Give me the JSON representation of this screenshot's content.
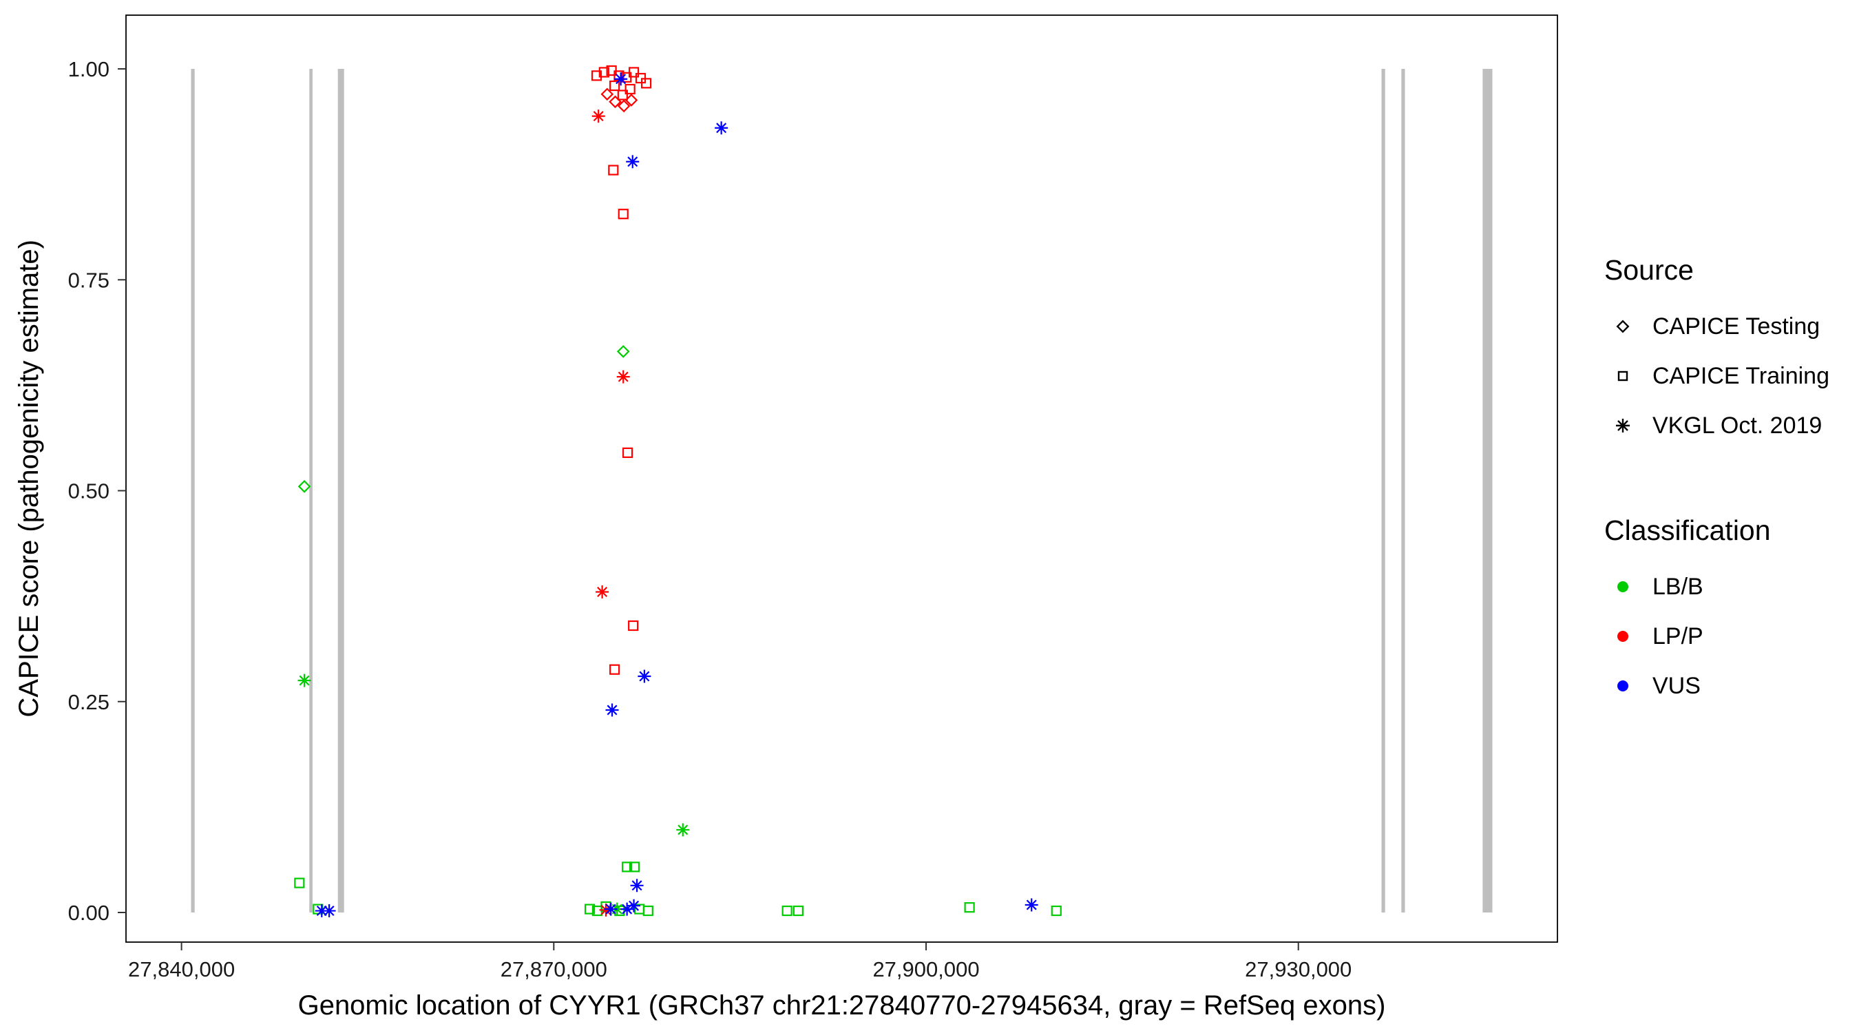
{
  "chart_data": {
    "type": "scatter",
    "xlabel": "Genomic location of CYYR1 (GRCh37 chr21:27840770-27945634, gray = RefSeq exons)",
    "ylabel": "CAPICE score (pathogenicity estimate)",
    "xlim": [
      27835527,
      27950877
    ],
    "ylim": [
      -0.0351,
      1.0637
    ],
    "grid": false,
    "legend_position": "right",
    "x_ticks": [
      {
        "value": 27840000,
        "label": "27,840,000"
      },
      {
        "value": 27870000,
        "label": "27,870,000"
      },
      {
        "value": 27900000,
        "label": "27,900,000"
      },
      {
        "value": 27930000,
        "label": "27,930,000"
      }
    ],
    "y_ticks": [
      {
        "value": 0.0,
        "label": "0.00"
      },
      {
        "value": 0.25,
        "label": "0.25"
      },
      {
        "value": 0.5,
        "label": "0.50"
      },
      {
        "value": 0.75,
        "label": "0.75"
      },
      {
        "value": 1.0,
        "label": "1.00"
      }
    ],
    "exon_color": "#BEBEBE",
    "exons": [
      [
        27840770,
        27841060
      ],
      [
        27850300,
        27850560
      ],
      [
        27852600,
        27853100
      ],
      [
        27936700,
        27936990
      ],
      [
        27938300,
        27938590
      ],
      [
        27944850,
        27945634
      ]
    ],
    "source_shapes": {
      "CAPICE Testing": "diamond",
      "CAPICE Training": "square",
      "VKGL Oct. 2019": "asterisk"
    },
    "classification_colors": {
      "LB/B": "#00CC00",
      "LP/P": "#FF0000",
      "VUS": "#0000FF"
    },
    "points": [
      {
        "x": 27875600,
        "y": 0.665,
        "source": "CAPICE Testing",
        "classification": "LB/B"
      },
      {
        "x": 27849900,
        "y": 0.505,
        "source": "CAPICE Testing",
        "classification": "LB/B"
      },
      {
        "x": 27849900,
        "y": 0.275,
        "source": "VKGL Oct. 2019",
        "classification": "LB/B"
      },
      {
        "x": 27880400,
        "y": 0.098,
        "source": "VKGL Oct. 2019",
        "classification": "LB/B"
      },
      {
        "x": 27875100,
        "y": 0.004,
        "source": "VKGL Oct. 2019",
        "classification": "LB/B"
      },
      {
        "x": 27849500,
        "y": 0.035,
        "source": "CAPICE Training",
        "classification": "LB/B"
      },
      {
        "x": 27875900,
        "y": 0.054,
        "source": "CAPICE Training",
        "classification": "LB/B"
      },
      {
        "x": 27876500,
        "y": 0.054,
        "source": "CAPICE Training",
        "classification": "LB/B"
      },
      {
        "x": 27872900,
        "y": 0.004,
        "source": "CAPICE Training",
        "classification": "LB/B"
      },
      {
        "x": 27873500,
        "y": 0.002,
        "source": "CAPICE Training",
        "classification": "LB/B"
      },
      {
        "x": 27874200,
        "y": 0.007,
        "source": "CAPICE Training",
        "classification": "LB/B"
      },
      {
        "x": 27875300,
        "y": 0.002,
        "source": "CAPICE Training",
        "classification": "LB/B"
      },
      {
        "x": 27876900,
        "y": 0.004,
        "source": "CAPICE Training",
        "classification": "LB/B"
      },
      {
        "x": 27877600,
        "y": 0.002,
        "source": "CAPICE Training",
        "classification": "LB/B"
      },
      {
        "x": 27851000,
        "y": 0.004,
        "source": "CAPICE Training",
        "classification": "LB/B"
      },
      {
        "x": 27888800,
        "y": 0.002,
        "source": "CAPICE Training",
        "classification": "LB/B"
      },
      {
        "x": 27889700,
        "y": 0.002,
        "source": "CAPICE Training",
        "classification": "LB/B"
      },
      {
        "x": 27903500,
        "y": 0.006,
        "source": "CAPICE Training",
        "classification": "LB/B"
      },
      {
        "x": 27910500,
        "y": 0.002,
        "source": "CAPICE Training",
        "classification": "LB/B"
      },
      {
        "x": 27873450,
        "y": 0.992,
        "source": "CAPICE Training",
        "classification": "LP/P"
      },
      {
        "x": 27874050,
        "y": 0.996,
        "source": "CAPICE Training",
        "classification": "LP/P"
      },
      {
        "x": 27874650,
        "y": 0.998,
        "source": "CAPICE Training",
        "classification": "LP/P"
      },
      {
        "x": 27875250,
        "y": 0.992,
        "source": "CAPICE Training",
        "classification": "LP/P"
      },
      {
        "x": 27875850,
        "y": 0.99,
        "source": "CAPICE Training",
        "classification": "LP/P"
      },
      {
        "x": 27876450,
        "y": 0.996,
        "source": "CAPICE Training",
        "classification": "LP/P"
      },
      {
        "x": 27877000,
        "y": 0.989,
        "source": "CAPICE Training",
        "classification": "LP/P"
      },
      {
        "x": 27877450,
        "y": 0.983,
        "source": "CAPICE Training",
        "classification": "LP/P"
      },
      {
        "x": 27876150,
        "y": 0.976,
        "source": "CAPICE Training",
        "classification": "LP/P"
      },
      {
        "x": 27874900,
        "y": 0.98,
        "source": "CAPICE Training",
        "classification": "LP/P"
      },
      {
        "x": 27875550,
        "y": 0.969,
        "source": "CAPICE Training",
        "classification": "LP/P"
      },
      {
        "x": 27874800,
        "y": 0.88,
        "source": "CAPICE Training",
        "classification": "LP/P"
      },
      {
        "x": 27875600,
        "y": 0.828,
        "source": "CAPICE Training",
        "classification": "LP/P"
      },
      {
        "x": 27875950,
        "y": 0.545,
        "source": "CAPICE Training",
        "classification": "LP/P"
      },
      {
        "x": 27876400,
        "y": 0.34,
        "source": "CAPICE Training",
        "classification": "LP/P"
      },
      {
        "x": 27874900,
        "y": 0.288,
        "source": "CAPICE Training",
        "classification": "LP/P"
      },
      {
        "x": 27874300,
        "y": 0.97,
        "source": "CAPICE Testing",
        "classification": "LP/P"
      },
      {
        "x": 27874950,
        "y": 0.961,
        "source": "CAPICE Testing",
        "classification": "LP/P"
      },
      {
        "x": 27875650,
        "y": 0.956,
        "source": "CAPICE Testing",
        "classification": "LP/P"
      },
      {
        "x": 27876250,
        "y": 0.963,
        "source": "CAPICE Testing",
        "classification": "LP/P"
      },
      {
        "x": 27873600,
        "y": 0.944,
        "source": "VKGL Oct. 2019",
        "classification": "LP/P"
      },
      {
        "x": 27875600,
        "y": 0.635,
        "source": "VKGL Oct. 2019",
        "classification": "LP/P"
      },
      {
        "x": 27873900,
        "y": 0.38,
        "source": "VKGL Oct. 2019",
        "classification": "LP/P"
      },
      {
        "x": 27874200,
        "y": 0.003,
        "source": "VKGL Oct. 2019",
        "classification": "LP/P"
      },
      {
        "x": 27875400,
        "y": 0.988,
        "source": "VKGL Oct. 2019",
        "classification": "VUS"
      },
      {
        "x": 27883500,
        "y": 0.93,
        "source": "VKGL Oct. 2019",
        "classification": "VUS"
      },
      {
        "x": 27876350,
        "y": 0.89,
        "source": "VKGL Oct. 2019",
        "classification": "VUS"
      },
      {
        "x": 27877300,
        "y": 0.28,
        "source": "VKGL Oct. 2019",
        "classification": "VUS"
      },
      {
        "x": 27874700,
        "y": 0.24,
        "source": "VKGL Oct. 2019",
        "classification": "VUS"
      },
      {
        "x": 27876700,
        "y": 0.032,
        "source": "VKGL Oct. 2019",
        "classification": "VUS"
      },
      {
        "x": 27874600,
        "y": 0.004,
        "source": "VKGL Oct. 2019",
        "classification": "VUS"
      },
      {
        "x": 27875900,
        "y": 0.004,
        "source": "VKGL Oct. 2019",
        "classification": "VUS"
      },
      {
        "x": 27876450,
        "y": 0.008,
        "source": "VKGL Oct. 2019",
        "classification": "VUS"
      },
      {
        "x": 27851300,
        "y": 0.002,
        "source": "VKGL Oct. 2019",
        "classification": "VUS"
      },
      {
        "x": 27851900,
        "y": 0.002,
        "source": "VKGL Oct. 2019",
        "classification": "VUS"
      },
      {
        "x": 27908500,
        "y": 0.009,
        "source": "VKGL Oct. 2019",
        "classification": "VUS"
      }
    ]
  },
  "legend": {
    "source": {
      "title": "Source",
      "items": [
        {
          "label": "CAPICE Testing",
          "shape": "diamond"
        },
        {
          "label": "CAPICE Training",
          "shape": "square"
        },
        {
          "label": "VKGL Oct. 2019",
          "shape": "asterisk"
        }
      ]
    },
    "classification": {
      "title": "Classification",
      "items": [
        {
          "label": "LB/B",
          "color": "#00CC00"
        },
        {
          "label": "LP/P",
          "color": "#FF0000"
        },
        {
          "label": "VUS",
          "color": "#0000FF"
        }
      ]
    }
  }
}
